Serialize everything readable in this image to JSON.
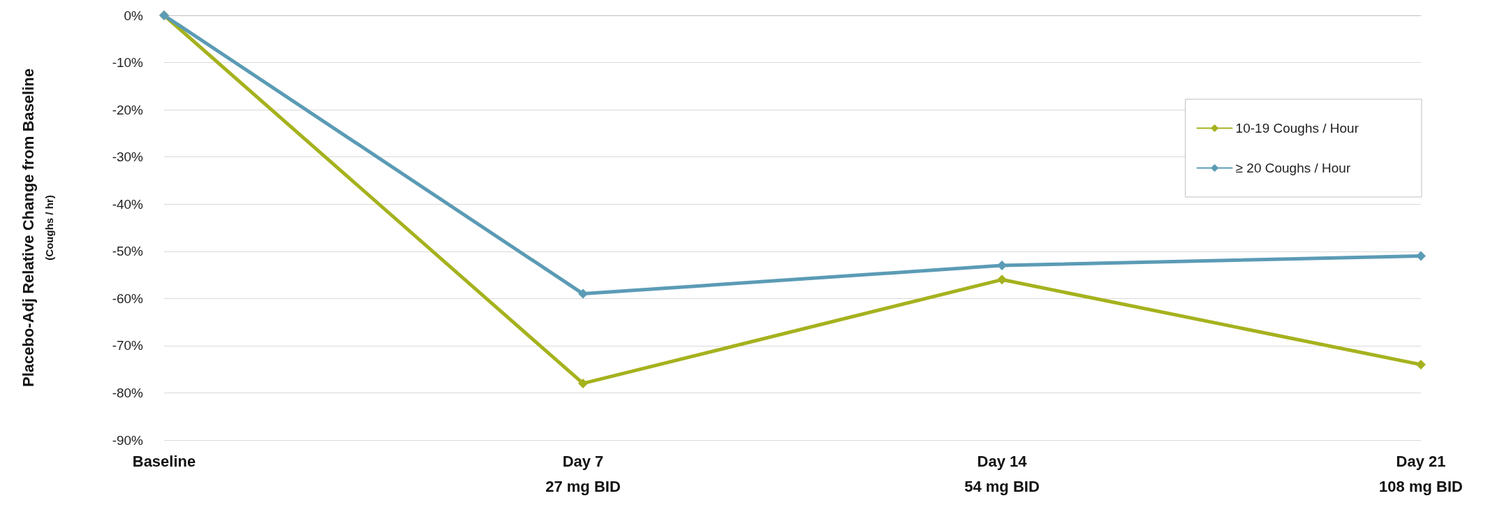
{
  "chart_data": {
    "type": "line",
    "ylabel": "Placebo-Adj Relative Change from Baseline\n(Coughs / hr)",
    "categories": [
      "Baseline",
      "Day 7\n27 mg BID",
      "Day 14\n54 mg BID",
      "Day 21\n108 mg BID"
    ],
    "series": [
      {
        "name": "10-19 Coughs / Hour",
        "color": "#a5b21e",
        "values": [
          0,
          -78,
          -56,
          -74
        ]
      },
      {
        "name": "≥ 20 Coughs / Hour",
        "color": "#5b9bb5",
        "values": [
          0,
          -59,
          -53,
          -51
        ]
      }
    ],
    "ylim": [
      -90,
      0
    ],
    "yticks": [
      {
        "value": -90,
        "label": "-90%"
      },
      {
        "value": -80,
        "label": "-80%"
      },
      {
        "value": -70,
        "label": "-70%"
      },
      {
        "value": -60,
        "label": "-60%"
      },
      {
        "value": -50,
        "label": "-50%"
      },
      {
        "value": -40,
        "label": "-40%"
      },
      {
        "value": -30,
        "label": "-30%"
      },
      {
        "value": -20,
        "label": "-20%"
      },
      {
        "value": -10,
        "label": "-10%"
      },
      {
        "value": 0,
        "label": "0%"
      }
    ],
    "grid": "y",
    "legend": "top right",
    "marker": "diamond",
    "line_style": "solid"
  }
}
